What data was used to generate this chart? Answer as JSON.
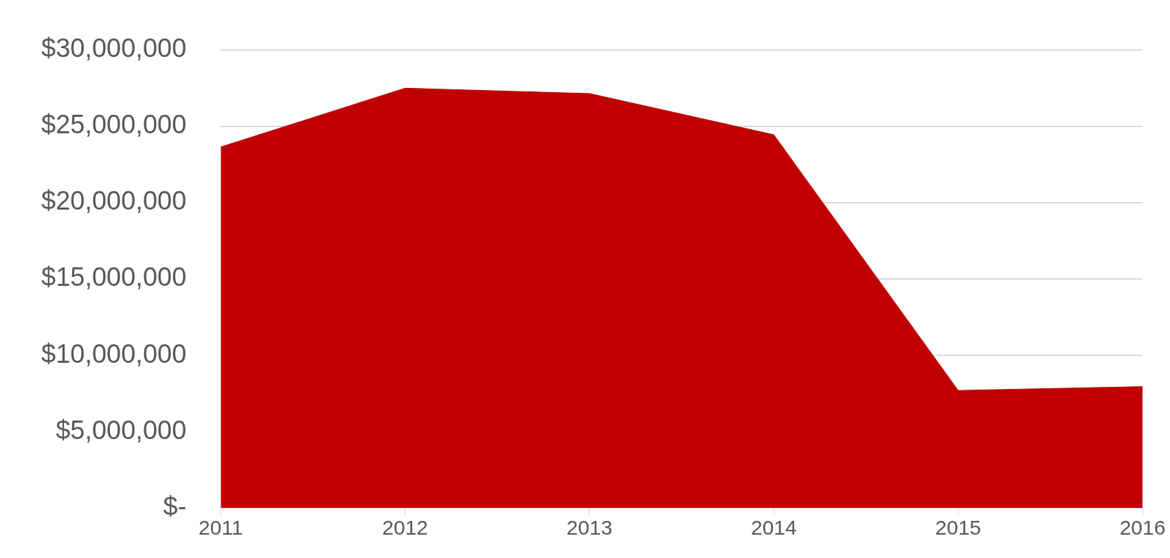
{
  "chart_data": {
    "type": "area",
    "categories": [
      "2011",
      "2012",
      "2013",
      "2014",
      "2015",
      "2016"
    ],
    "series": [
      {
        "color": "#c00000",
        "values": [
          23650000,
          27500000,
          27150000,
          24450000,
          7700000,
          7950000
        ]
      }
    ],
    "ylim": [
      0,
      30000000
    ],
    "yticks": [
      {
        "value": 0,
        "label": "$-"
      },
      {
        "value": 5000000,
        "label": "$5,000,000"
      },
      {
        "value": 10000000,
        "label": "$10,000,000"
      },
      {
        "value": 15000000,
        "label": "$15,000,000"
      },
      {
        "value": 20000000,
        "label": "$20,000,000"
      },
      {
        "value": 25000000,
        "label": "$25,000,000"
      },
      {
        "value": 30000000,
        "label": "$30,000,000"
      }
    ],
    "grid": "y",
    "legend": false
  }
}
